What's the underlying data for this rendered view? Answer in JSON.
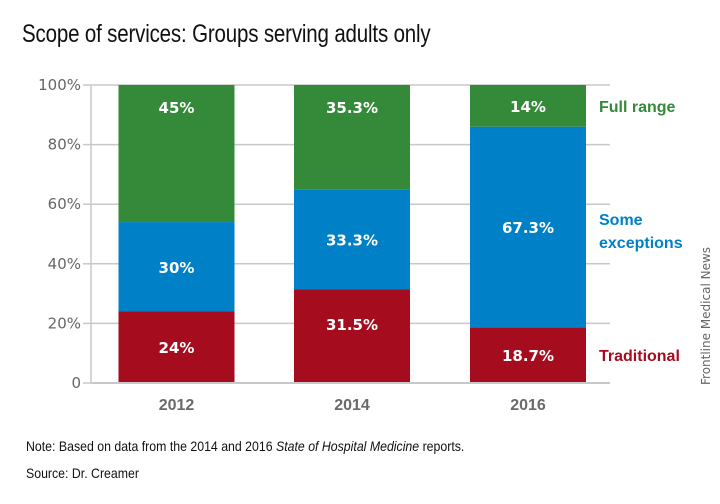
{
  "chart_data": {
    "type": "bar",
    "stacked": true,
    "title": "Scope of services: Groups serving adults only",
    "categories": [
      "2012",
      "2014",
      "2016"
    ],
    "series": [
      {
        "name": "Traditional",
        "color": "#a50d1f",
        "values": [
          24,
          31.5,
          18.7
        ],
        "labels": [
          "24%",
          "31.5%",
          "18.7%"
        ]
      },
      {
        "name": "Some exceptions",
        "color": "#0080c6",
        "values": [
          30,
          33.3,
          67.3
        ],
        "labels": [
          "30%",
          "33.3%",
          "67.3%"
        ]
      },
      {
        "name": "Full range",
        "color": "#348a39",
        "values": [
          45,
          35.3,
          14
        ],
        "labels": [
          "45%",
          "35.3%",
          "14%"
        ]
      }
    ],
    "legend": [
      {
        "lines": [
          "Full range"
        ],
        "color": "#348a39"
      },
      {
        "lines": [
          "Some",
          "exceptions"
        ],
        "color": "#0080c6"
      },
      {
        "lines": [
          "Traditional"
        ],
        "color": "#a50d1f"
      }
    ],
    "legend_placement": "right",
    "ylim": [
      0,
      100
    ],
    "yticks": [
      0,
      20,
      40,
      60,
      80,
      100
    ],
    "ytick_labels": [
      "0",
      "20%",
      "40%",
      "60%",
      "80%",
      "100%"
    ],
    "xlabel": "",
    "ylabel": "",
    "grid": true
  },
  "footer": {
    "note_label": "Note:",
    "note_text_1": " Based on data from the 2014 and 2016 ",
    "note_italic": "State of Hospital Medicine",
    "note_text_2": " reports.",
    "source_label": "Source:",
    "source_text": " Dr. Creamer"
  },
  "credit": "Frontline Medical News"
}
